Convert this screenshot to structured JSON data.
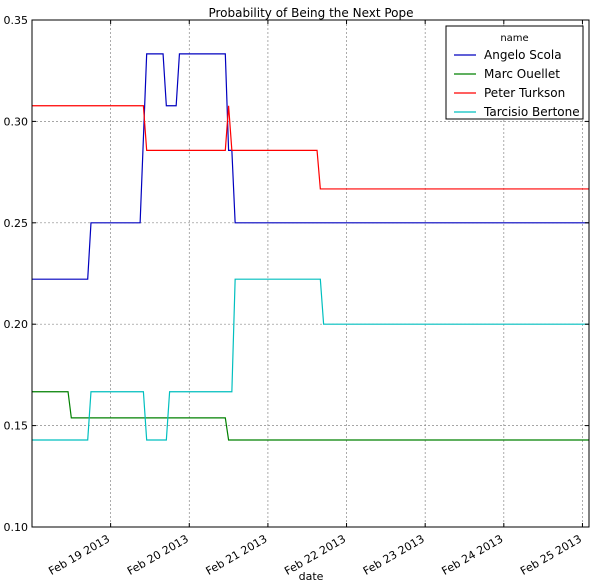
{
  "chart_data": {
    "type": "line",
    "title": "Probability of Being the Next Pope",
    "xlabel": "date",
    "ylabel": "",
    "x_axis_kind": "datetime",
    "xlim": [
      "2013-02-18 00:00",
      "2013-02-25 02:00"
    ],
    "ylim": [
      0.1,
      0.35
    ],
    "yticks": [
      "0.10",
      "0.15",
      "0.20",
      "0.25",
      "0.30",
      "0.35"
    ],
    "xticks": [
      "Feb 19 2013",
      "Feb 20 2013",
      "Feb 21 2013",
      "Feb 22 2013",
      "Feb 23 2013",
      "Feb 24 2013",
      "Feb 25 2013"
    ],
    "grid": true,
    "legend": {
      "title": "name",
      "placement": "top-right"
    },
    "series": [
      {
        "name": "Angelo Scola",
        "color": "#0000bf",
        "points": [
          [
            "2013-02-18 00:00",
            0.2222
          ],
          [
            "2013-02-18 17:00",
            0.2222
          ],
          [
            "2013-02-18 18:00",
            0.25
          ],
          [
            "2013-02-19 09:00",
            0.25
          ],
          [
            "2013-02-19 11:00",
            0.3333
          ],
          [
            "2013-02-19 16:00",
            0.3333
          ],
          [
            "2013-02-19 17:00",
            0.3077
          ],
          [
            "2013-02-19 20:00",
            0.3077
          ],
          [
            "2013-02-19 21:00",
            0.3333
          ],
          [
            "2013-02-20 11:00",
            0.3333
          ],
          [
            "2013-02-20 12:00",
            0.2857
          ],
          [
            "2013-02-20 13:00",
            0.2857
          ],
          [
            "2013-02-20 14:00",
            0.25
          ],
          [
            "2013-02-25 02:00",
            0.25
          ]
        ]
      },
      {
        "name": "Marc Ouellet",
        "color": "#008000",
        "points": [
          [
            "2013-02-18 00:00",
            0.1667
          ],
          [
            "2013-02-18 11:00",
            0.1667
          ],
          [
            "2013-02-18 12:00",
            0.1538
          ],
          [
            "2013-02-20 11:00",
            0.1538
          ],
          [
            "2013-02-20 12:00",
            0.1429
          ],
          [
            "2013-02-25 02:00",
            0.1429
          ]
        ]
      },
      {
        "name": "Peter Turkson",
        "color": "#ff0000",
        "points": [
          [
            "2013-02-18 00:00",
            0.3077
          ],
          [
            "2013-02-19 10:00",
            0.3077
          ],
          [
            "2013-02-19 11:00",
            0.2857
          ],
          [
            "2013-02-20 11:00",
            0.2857
          ],
          [
            "2013-02-20 12:00",
            0.3077
          ],
          [
            "2013-02-20 13:00",
            0.2857
          ],
          [
            "2013-02-21 15:00",
            0.2857
          ],
          [
            "2013-02-21 16:00",
            0.2667
          ],
          [
            "2013-02-25 02:00",
            0.2667
          ]
        ]
      },
      {
        "name": "Tarcisio Bertone",
        "color": "#00bfbf",
        "points": [
          [
            "2013-02-18 00:00",
            0.1429
          ],
          [
            "2013-02-18 17:00",
            0.1429
          ],
          [
            "2013-02-18 18:00",
            0.1667
          ],
          [
            "2013-02-19 10:00",
            0.1667
          ],
          [
            "2013-02-19 11:00",
            0.1429
          ],
          [
            "2013-02-19 17:00",
            0.1429
          ],
          [
            "2013-02-19 18:00",
            0.1667
          ],
          [
            "2013-02-20 13:00",
            0.1667
          ],
          [
            "2013-02-20 14:00",
            0.2222
          ],
          [
            "2013-02-21 16:00",
            0.2222
          ],
          [
            "2013-02-21 17:00",
            0.2
          ],
          [
            "2013-02-25 02:00",
            0.2
          ]
        ]
      }
    ]
  }
}
